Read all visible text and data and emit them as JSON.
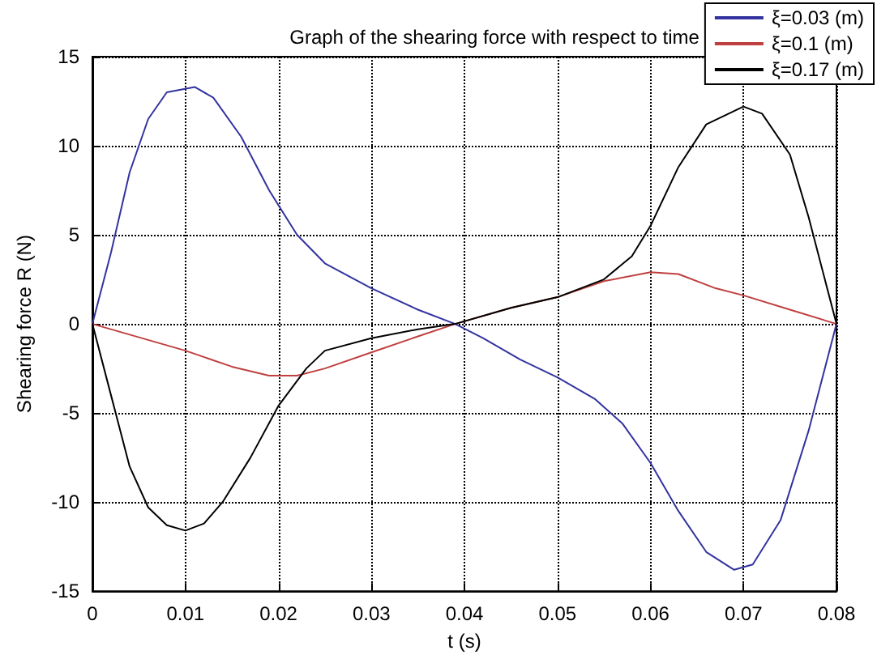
{
  "chart_data": {
    "type": "line",
    "title": "Graph of the shearing force with respect to time",
    "xlabel": "t (s)",
    "ylabel": "Shearing force R (N)",
    "xlim": [
      0,
      0.08
    ],
    "xticks": [
      0,
      0.01,
      0.02,
      0.03,
      0.04,
      0.05,
      0.06,
      0.07,
      0.08
    ],
    "ylim": [
      -15,
      15
    ],
    "yticks": [
      -15,
      -10,
      -5,
      0,
      5,
      10,
      15
    ],
    "grid": true,
    "legend": "top right",
    "marker": "none",
    "line_style": "solid",
    "series": [
      {
        "name": "ξ=0.03 (m)",
        "color": "#3333a0",
        "x": [
          0,
          0.002,
          0.004,
          0.006,
          0.008,
          0.011,
          0.013,
          0.016,
          0.019,
          0.022,
          0.025,
          0.03,
          0.035,
          0.039,
          0.042,
          0.046,
          0.05,
          0.054,
          0.057,
          0.06,
          0.063,
          0.066,
          0.069,
          0.071,
          0.074,
          0.077,
          0.08
        ],
        "values": [
          0,
          4,
          8.5,
          11.5,
          13,
          13.3,
          12.7,
          10.5,
          7.5,
          5,
          3.4,
          2,
          0.8,
          0,
          -0.8,
          -2,
          -3,
          -4.2,
          -5.6,
          -7.8,
          -10.5,
          -12.8,
          -13.8,
          -13.5,
          -11,
          -6,
          0
        ]
      },
      {
        "name": "ξ=0.1 (m)",
        "color": "#c04040",
        "x": [
          0,
          0.01,
          0.015,
          0.019,
          0.022,
          0.025,
          0.03,
          0.035,
          0.039,
          0.045,
          0.05,
          0.055,
          0.06,
          0.063,
          0.067,
          0.07,
          0.075,
          0.08
        ],
        "values": [
          0,
          -1.5,
          -2.4,
          -2.9,
          -2.9,
          -2.5,
          -1.6,
          -0.7,
          0,
          0.9,
          1.5,
          2.4,
          2.9,
          2.8,
          2,
          1.6,
          0.8,
          0
        ]
      },
      {
        "name": "ξ=0.17 (m)",
        "color": "#000000",
        "x": [
          0,
          0.002,
          0.004,
          0.006,
          0.008,
          0.01,
          0.012,
          0.014,
          0.017,
          0.02,
          0.023,
          0.025,
          0.03,
          0.035,
          0.039,
          0.045,
          0.05,
          0.055,
          0.058,
          0.06,
          0.063,
          0.066,
          0.07,
          0.072,
          0.075,
          0.077,
          0.08
        ],
        "values": [
          0,
          -4,
          -8,
          -10.3,
          -11.3,
          -11.6,
          -11.2,
          -10,
          -7.5,
          -4.6,
          -2.5,
          -1.5,
          -0.8,
          -0.3,
          0,
          0.9,
          1.5,
          2.5,
          3.8,
          5.5,
          8.8,
          11.2,
          12.2,
          11.8,
          9.5,
          6,
          0
        ]
      }
    ]
  }
}
